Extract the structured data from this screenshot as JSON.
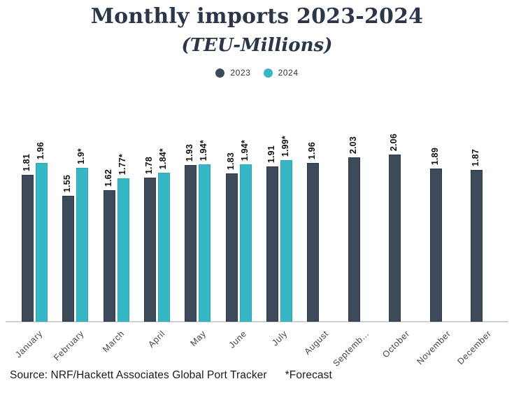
{
  "title": "Monthly imports 2023-2024",
  "subtitle": "(TEU-Millions)",
  "legend": {
    "items": [
      {
        "label": "2023",
        "color": "#3d4a59"
      },
      {
        "label": "2024",
        "color": "#36b7c5"
      }
    ]
  },
  "source": "Source: NRF/Hackett Associates Global Port Tracker",
  "forecast_note": "*Forecast",
  "colors": {
    "series_2023": "#3d4a59",
    "series_2024": "#36b7c5",
    "title_text": "#2b3648",
    "axis_line": "#ccd1d5",
    "value_label": "#111111",
    "tick_label": "#454545",
    "background": "#ffffff"
  },
  "chart_data": {
    "type": "bar",
    "title": "Monthly imports 2023-2024",
    "subtitle": "(TEU-Millions)",
    "categories": [
      "January",
      "February",
      "March",
      "April",
      "May",
      "June",
      "July",
      "August",
      "September",
      "October",
      "November",
      "December"
    ],
    "tick_labels": [
      "January",
      "February",
      "March",
      "April",
      "May",
      "June",
      "July",
      "August",
      "Septemb...",
      "October",
      "November",
      "December"
    ],
    "series": [
      {
        "name": "2023",
        "color": "#3d4a59",
        "values": [
          1.81,
          1.55,
          1.62,
          1.78,
          1.93,
          1.83,
          1.91,
          1.96,
          2.03,
          2.06,
          1.89,
          1.87
        ],
        "labels": [
          "1.81",
          "1.55",
          "1.62",
          "1.78",
          "1.93",
          "1.83",
          "1.91",
          "1.96",
          "2.03",
          "2.06",
          "1.89",
          "1.87"
        ]
      },
      {
        "name": "2024",
        "color": "#36b7c5",
        "values": [
          1.96,
          1.9,
          1.77,
          1.84,
          1.94,
          1.94,
          1.99,
          null,
          null,
          null,
          null,
          null
        ],
        "labels": [
          "1.96",
          "1.9*",
          "1.77*",
          "1.84*",
          "1.94*",
          "1.94*",
          "1.99*",
          null,
          null,
          null,
          null,
          null
        ]
      }
    ],
    "ylim": [
      0,
      2.2
    ],
    "grid": false,
    "legend_position": "top",
    "value_labels_rotation": -90,
    "tick_labels_rotation": -45,
    "footnote": "*Forecast",
    "source": "Source: NRF/Hackett Associates Global Port Tracker"
  }
}
